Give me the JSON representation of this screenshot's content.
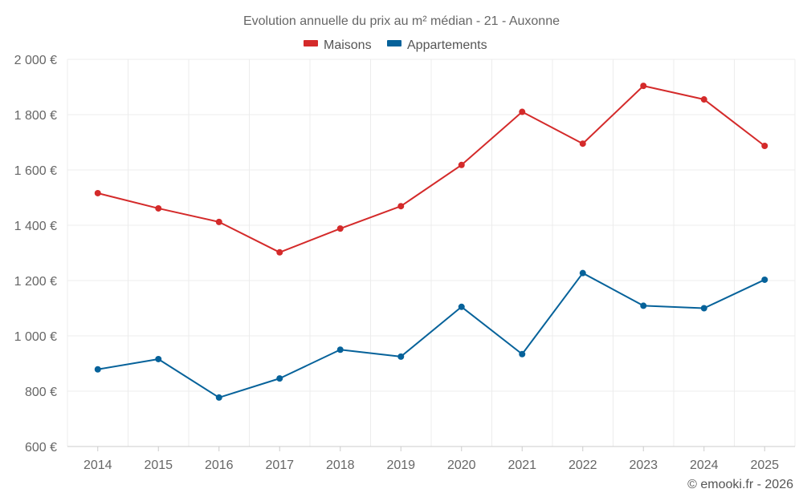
{
  "chart_data": {
    "type": "line",
    "title": "Evolution annuelle du prix au m² médian - 21 - Auxonne",
    "categories": [
      "2014",
      "2015",
      "2016",
      "2017",
      "2018",
      "2019",
      "2020",
      "2021",
      "2022",
      "2023",
      "2024",
      "2025"
    ],
    "series": [
      {
        "name": "Maisons",
        "color": "#d42a2a",
        "values": [
          1516,
          1461,
          1412,
          1302,
          1388,
          1469,
          1618,
          1810,
          1695,
          1904,
          1855,
          1687
        ]
      },
      {
        "name": "Appartements",
        "color": "#06629a",
        "values": [
          879,
          916,
          777,
          846,
          950,
          925,
          1105,
          934,
          1227,
          1109,
          1100,
          1203
        ]
      }
    ],
    "ylim": [
      600,
      2000
    ],
    "yticks": [
      600,
      800,
      1000,
      1200,
      1400,
      1600,
      1800,
      2000
    ],
    "ytick_labels": [
      "600 €",
      "800 €",
      "1 000 €",
      "1 200 €",
      "1 400 €",
      "1 600 €",
      "1 800 €",
      "2 000 €"
    ],
    "xlabel": "",
    "ylabel": "",
    "grid": true,
    "legend_position": "top-center"
  },
  "credit": "© emooki.fr - 2026"
}
